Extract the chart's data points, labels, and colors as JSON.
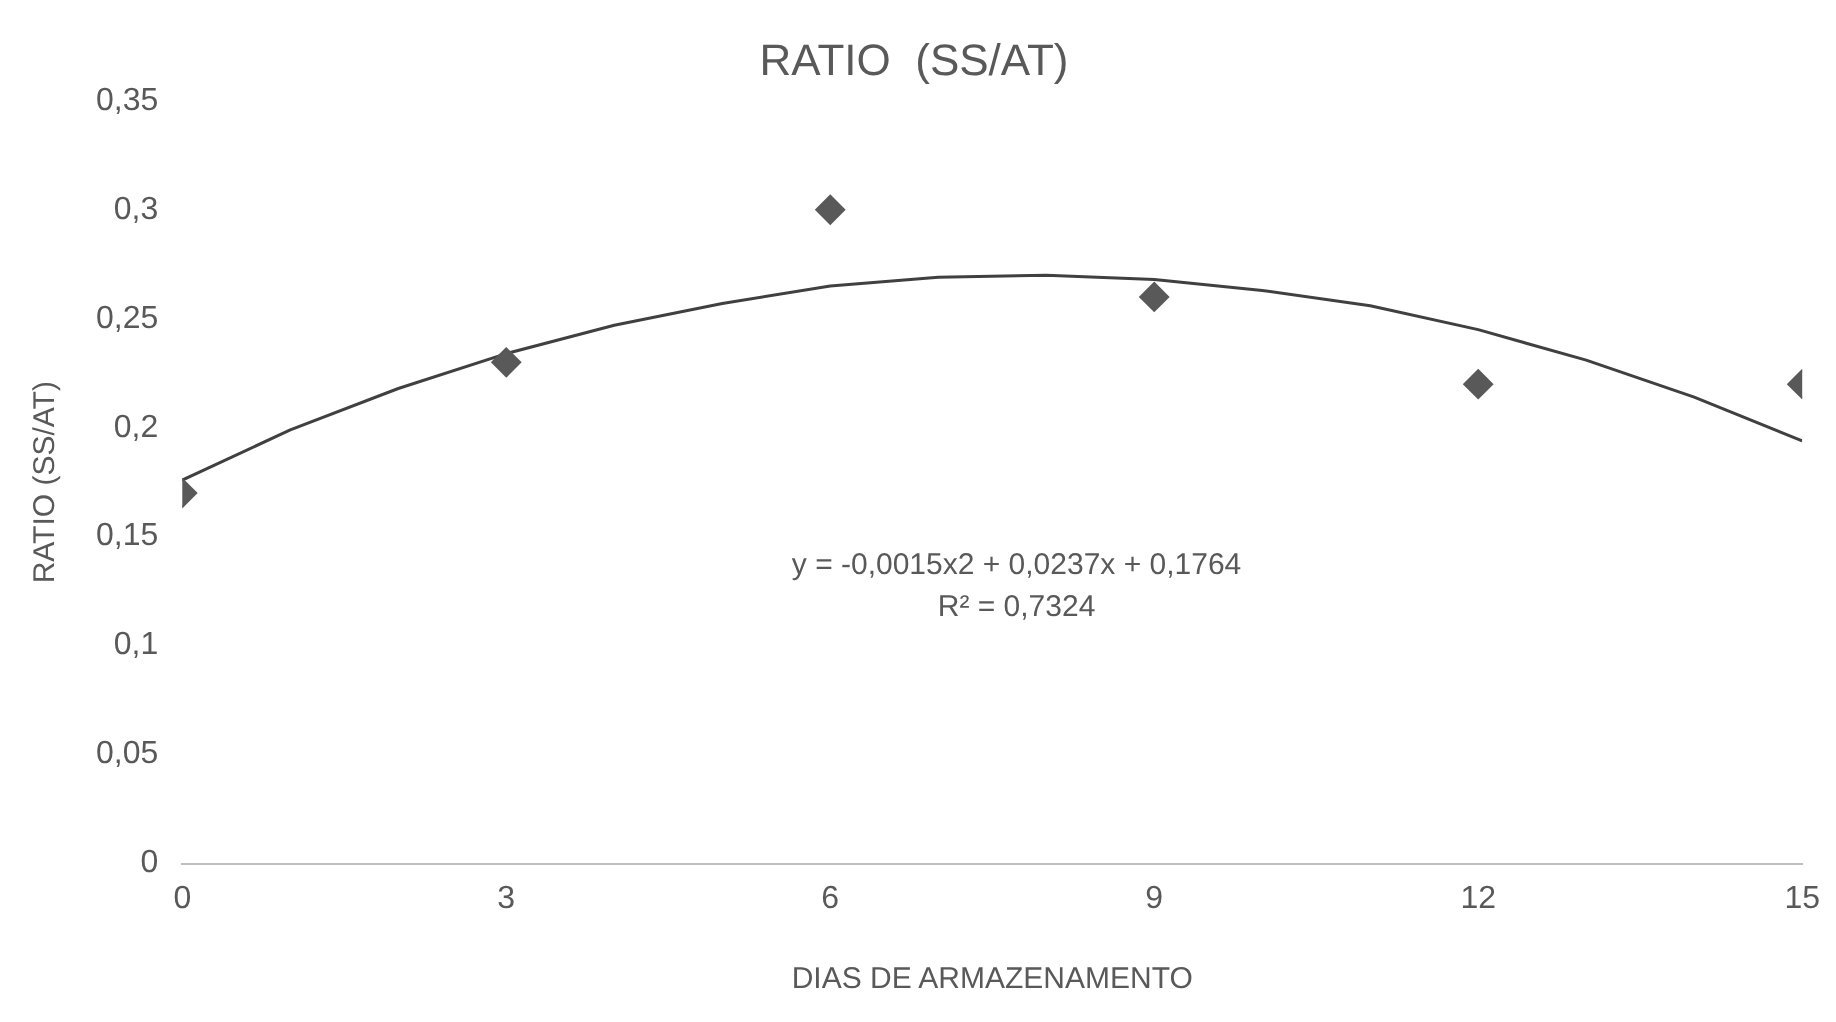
{
  "chart_data": {
    "type": "scatter",
    "title": "RATIO  (SS/AT)",
    "xlabel": "DIAS DE ARMAZENAMENTO",
    "ylabel": "RATIO (SS/AT)",
    "xlim": [
      0,
      15
    ],
    "xticks": [
      0,
      3,
      6,
      9,
      12,
      15
    ],
    "ylim": [
      0,
      0.35
    ],
    "yticks": [
      {
        "value": 0,
        "label": "0"
      },
      {
        "value": 0.05,
        "label": "0,05"
      },
      {
        "value": 0.1,
        "label": "0,1"
      },
      {
        "value": 0.15,
        "label": "0,15"
      },
      {
        "value": 0.2,
        "label": "0,2"
      },
      {
        "value": 0.25,
        "label": "0,25"
      },
      {
        "value": 0.3,
        "label": "0,3"
      },
      {
        "value": 0.35,
        "label": "0,35"
      }
    ],
    "grid": false,
    "legend": false,
    "marker": "diamond",
    "series": [
      {
        "color": "#595959",
        "x": [
          0,
          3,
          6,
          9,
          12,
          15
        ],
        "values": [
          0.17,
          0.23,
          0.3,
          0.26,
          0.22,
          0.22
        ]
      },
      {
        "type": "line",
        "color": "#404040",
        "marker": "none",
        "x": [
          0,
          1,
          2,
          3,
          4,
          5,
          6,
          7,
          8,
          9,
          10,
          11,
          12,
          13,
          14,
          15
        ],
        "values": [
          0.176,
          0.199,
          0.218,
          0.234,
          0.247,
          0.257,
          0.265,
          0.269,
          0.27,
          0.268,
          0.263,
          0.256,
          0.245,
          0.231,
          0.214,
          0.194
        ]
      }
    ],
    "annotations": [
      "y = -0,0015x2 + 0,0237x + 0,1764",
      "R² = 0,7324"
    ]
  }
}
